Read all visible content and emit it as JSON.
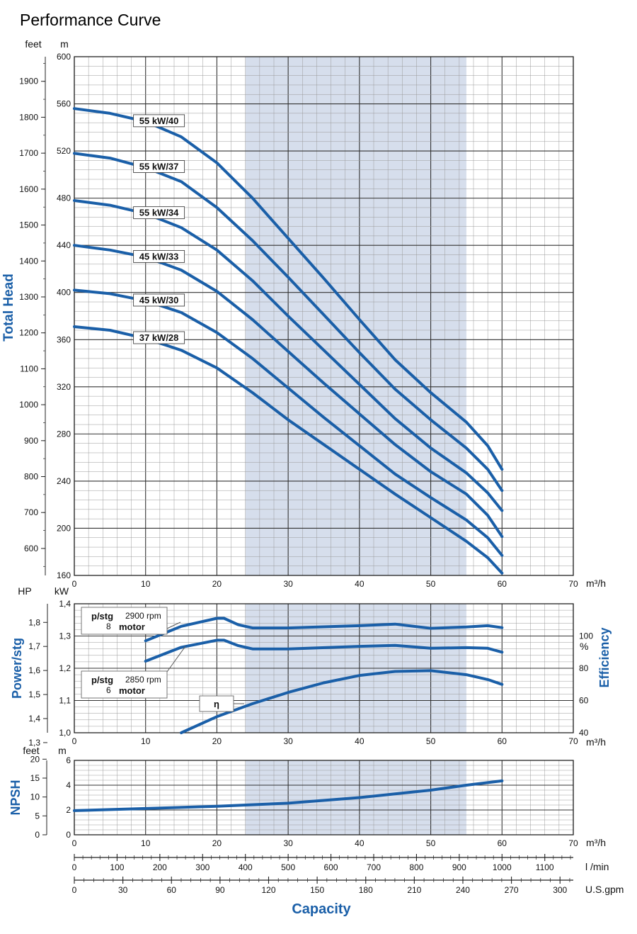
{
  "title": "Performance Curve",
  "colors": {
    "curve": "#1a5fa8",
    "shade": "#d6deec",
    "label": "#1a5fa8"
  },
  "chart_data": [
    {
      "type": "line",
      "ylabel": "Total Head",
      "x_unit": "m³/h",
      "y_unit": "m",
      "y2_unit": "feet",
      "xlim": [
        0,
        70
      ],
      "ylim": [
        160,
        600
      ],
      "x_ticks": [
        "0",
        "10",
        "20",
        "30",
        "40",
        "50",
        "60",
        "70"
      ],
      "y_ticks": [
        "160",
        "200",
        "240",
        "280",
        "320",
        "360",
        "400",
        "440",
        "480",
        "520",
        "560",
        "600"
      ],
      "y2_ticks": [
        "600",
        "700",
        "800",
        "900",
        "1000",
        "1100",
        "1200",
        "1300",
        "1400",
        "1500",
        "1600",
        "1700",
        "1800",
        "1900"
      ],
      "shaded_x_range": [
        24,
        55
      ],
      "grid": true,
      "series": [
        {
          "name": "55 kW/40",
          "label_x": 8.3,
          "x": [
            0,
            5,
            10,
            15,
            20,
            25,
            30,
            35,
            40,
            45,
            50,
            55,
            58,
            60
          ],
          "y": [
            556,
            552,
            545,
            532,
            510,
            480,
            446,
            412,
            377,
            343,
            315,
            290,
            270,
            250
          ]
        },
        {
          "name": "55 kW/37",
          "label_x": 8.3,
          "x": [
            0,
            5,
            10,
            15,
            20,
            25,
            30,
            35,
            40,
            45,
            50,
            55,
            58,
            60
          ],
          "y": [
            518,
            514,
            506,
            494,
            472,
            444,
            413,
            381,
            349,
            318,
            292,
            268,
            250,
            232
          ]
        },
        {
          "name": "55 kW/34",
          "label_x": 8.3,
          "x": [
            0,
            5,
            10,
            15,
            20,
            25,
            30,
            35,
            40,
            45,
            50,
            55,
            58,
            60
          ],
          "y": [
            478,
            474,
            467,
            455,
            436,
            410,
            380,
            351,
            322,
            293,
            268,
            247,
            230,
            215
          ]
        },
        {
          "name": "45 kW/33",
          "label_x": 8.3,
          "x": [
            0,
            5,
            10,
            15,
            20,
            25,
            30,
            35,
            40,
            45,
            50,
            55,
            58,
            60
          ],
          "y": [
            440,
            436,
            430,
            419,
            401,
            377,
            350,
            323,
            297,
            271,
            248,
            229,
            211,
            193
          ]
        },
        {
          "name": "45 kW/30",
          "label_x": 8.3,
          "x": [
            0,
            5,
            10,
            15,
            20,
            25,
            30,
            35,
            40,
            45,
            50,
            55,
            58,
            60
          ],
          "y": [
            402,
            399,
            393,
            383,
            366,
            344,
            319,
            294,
            270,
            246,
            226,
            207,
            192,
            177
          ]
        },
        {
          "name": "37 kW/28",
          "label_x": 8.3,
          "x": [
            0,
            5,
            10,
            15,
            20,
            25,
            30,
            35,
            40,
            45,
            50,
            55,
            58,
            60
          ],
          "y": [
            371,
            368,
            361,
            351,
            336,
            315,
            292,
            271,
            250,
            229,
            209,
            189,
            175,
            162
          ]
        }
      ]
    },
    {
      "type": "line",
      "ylabel": "Power/stg",
      "y2label": "Efficiency",
      "x_unit": "m³/h",
      "y_unit": "kW",
      "y_hp_unit": "HP",
      "y2_unit": "%",
      "xlim": [
        0,
        70
      ],
      "ylim": [
        1.0,
        1.4
      ],
      "y_ticks": [
        "1,0",
        "1,1",
        "1,2",
        "1,3",
        "1,4"
      ],
      "y_hp_ticks": [
        "1,3",
        "1,4",
        "1,5",
        "1,6",
        "1,7",
        "1,8"
      ],
      "y2_ticks": [
        "40",
        "60",
        "80",
        "100"
      ],
      "y2_lim": [
        40,
        120
      ],
      "annotations": [
        {
          "text_bold": "p/stg",
          "text_rpm": "2900 rpm",
          "text_motor_pre": "8",
          "text_motor": "motor"
        },
        {
          "text_bold": "p/stg",
          "text_rpm": "2850 rpm",
          "text_motor_pre": "6",
          "text_motor": "motor"
        },
        {
          "text": "η"
        }
      ],
      "series": [
        {
          "name": "p/stg 2900 rpm 8\" motor",
          "axis": "kW",
          "x": [
            10,
            15,
            20,
            21,
            23,
            25,
            30,
            40,
            45,
            50,
            55,
            58,
            60
          ],
          "y": [
            1.285,
            1.33,
            1.355,
            1.355,
            1.335,
            1.325,
            1.325,
            1.332,
            1.337,
            1.324,
            1.328,
            1.332,
            1.326
          ]
        },
        {
          "name": "p/stg 2850 rpm 6\" motor",
          "axis": "kW",
          "x": [
            10,
            15,
            20,
            21,
            23,
            25,
            30,
            40,
            45,
            50,
            55,
            58,
            60
          ],
          "y": [
            1.222,
            1.265,
            1.287,
            1.287,
            1.27,
            1.26,
            1.26,
            1.268,
            1.271,
            1.262,
            1.264,
            1.262,
            1.25
          ]
        },
        {
          "name": "η",
          "axis": "%",
          "x": [
            15,
            20,
            25,
            30,
            35,
            40,
            45,
            50,
            55,
            58,
            60
          ],
          "y": [
            40,
            50,
            58,
            65,
            71,
            75.5,
            78,
            78.5,
            76,
            73,
            70
          ]
        }
      ]
    },
    {
      "type": "line",
      "ylabel": "NPSH",
      "x_unit": "m³/h",
      "y_unit": "m",
      "y2_unit": "feet",
      "xlim": [
        0,
        70
      ],
      "ylim": [
        0,
        6
      ],
      "y_ticks": [
        "0",
        "2",
        "4",
        "6"
      ],
      "y2_ticks": [
        "0",
        "5",
        "10",
        "15",
        "20"
      ],
      "series": [
        {
          "name": "NPSH",
          "x": [
            0,
            10,
            20,
            30,
            40,
            50,
            55,
            60
          ],
          "y": [
            1.95,
            2.12,
            2.3,
            2.55,
            3.0,
            3.6,
            4.0,
            4.35
          ]
        }
      ]
    }
  ],
  "axes_bottom": {
    "lmin_unit": "l /min",
    "lmin_ticks": [
      "0",
      "100",
      "200",
      "300",
      "400",
      "500",
      "600",
      "700",
      "800",
      "900",
      "1000",
      "1100"
    ],
    "gpm_unit": "U.S.gpm",
    "gpm_ticks": [
      "0",
      "30",
      "60",
      "90",
      "120",
      "150",
      "180",
      "210",
      "240",
      "270",
      "300"
    ],
    "xlabel": "Capacity"
  }
}
